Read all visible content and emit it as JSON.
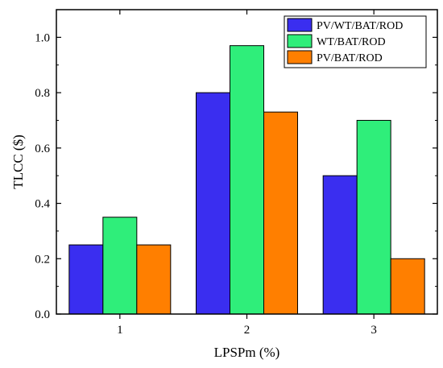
{
  "chart_data": {
    "type": "bar",
    "categories": [
      "1",
      "2",
      "3"
    ],
    "series": [
      {
        "name": "PV/WT/BAT/ROD",
        "values": [
          0.25,
          0.8,
          0.5
        ],
        "color": "#3a2ef0"
      },
      {
        "name": "WT/BAT/ROD",
        "values": [
          0.35,
          0.97,
          0.7
        ],
        "color": "#2fee7a"
      },
      {
        "name": "PV/BAT/ROD",
        "values": [
          0.25,
          0.73,
          0.2
        ],
        "color": "#ff7f00"
      }
    ],
    "xlabel": "LPSPm (%)",
    "ylabel": "TLCC ($)",
    "ylim": [
      0.0,
      1.1
    ],
    "yticks": [
      "0.0",
      "0.2",
      "0.4",
      "0.6",
      "0.8",
      "1.0"
    ],
    "grid": false,
    "legend_position": "top-right"
  }
}
